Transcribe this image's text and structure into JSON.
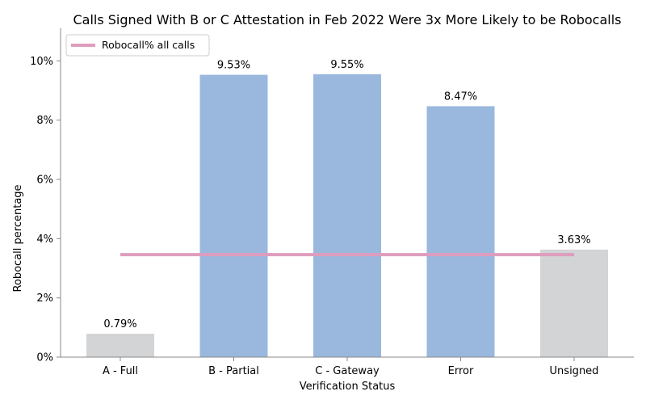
{
  "chart_data": {
    "type": "bar",
    "title": "Calls Signed With B or C Attestation in Feb 2022 Were 3x More Likely to be Robocalls",
    "xlabel": "Verification Status",
    "ylabel": "Robocall percentage",
    "categories": [
      "A - Full",
      "B - Partial",
      "C - Gateway",
      "Error",
      "Unsigned"
    ],
    "values": [
      0.79,
      9.53,
      9.55,
      8.47,
      3.63
    ],
    "data_labels": [
      "0.79%",
      "9.53%",
      "9.55%",
      "8.47%",
      "3.63%"
    ],
    "bar_colors": [
      "#d3d4d6",
      "#9ab8dd",
      "#9ab8dd",
      "#9ab8dd",
      "#d3d4d6"
    ],
    "ylim": [
      0,
      11.1
    ],
    "yticks": [
      0,
      2,
      4,
      6,
      8,
      10
    ],
    "ytick_labels": [
      "0%",
      "2%",
      "4%",
      "6%",
      "8%",
      "10%"
    ],
    "reference_line": {
      "name": "Robocall% all calls",
      "value": 3.46,
      "color": "#de9dbd"
    },
    "legend_position": "top-left",
    "grid": false
  }
}
